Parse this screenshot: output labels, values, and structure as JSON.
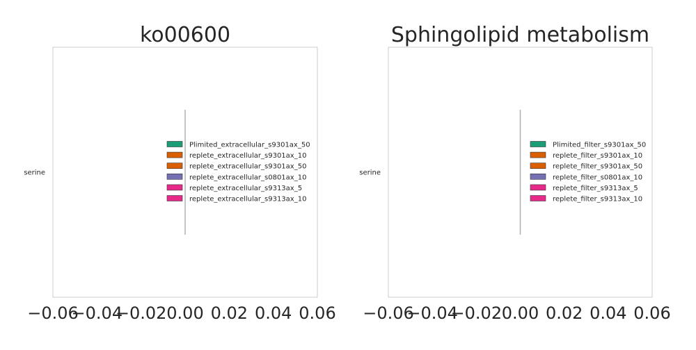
{
  "chart_data": [
    {
      "type": "bar",
      "orientation": "horizontal",
      "title": "ko00600",
      "xlabel": "",
      "ylabel": "",
      "categories": [
        "serine"
      ],
      "xlim": [
        -0.06,
        0.06
      ],
      "xticks": [
        "−0.06",
        "−0.04",
        "−0.02",
        "0.00",
        "0.02",
        "0.04",
        "0.06"
      ],
      "grid": false,
      "legend_position": "center",
      "series": [
        {
          "name": "Plimited_extracellular_s9301ax_50",
          "color": "#1b9e77",
          "values": [
            0
          ]
        },
        {
          "name": "replete_extracellular_s9301ax_10",
          "color": "#d95f02",
          "values": [
            0
          ]
        },
        {
          "name": "replete_extracellular_s9301ax_50",
          "color": "#d95f02",
          "values": [
            0
          ]
        },
        {
          "name": "replete_extracellular_s0801ax_10",
          "color": "#7570b3",
          "values": [
            0
          ]
        },
        {
          "name": "replete_extracellular_s9313ax_5",
          "color": "#e7298a",
          "values": [
            0
          ]
        },
        {
          "name": "replete_extracellular_s9313ax_10",
          "color": "#e7298a",
          "values": [
            0
          ]
        }
      ]
    },
    {
      "type": "bar",
      "orientation": "horizontal",
      "title": "Sphingolipid metabolism",
      "xlabel": "",
      "ylabel": "",
      "categories": [
        "serine"
      ],
      "xlim": [
        -0.06,
        0.06
      ],
      "xticks": [
        "−0.06",
        "−0.04",
        "−0.02",
        "0.00",
        "0.02",
        "0.04",
        "0.06"
      ],
      "grid": false,
      "legend_position": "center",
      "series": [
        {
          "name": "Plimited_filter_s9301ax_50",
          "color": "#1b9e77",
          "values": [
            0
          ]
        },
        {
          "name": "replete_filter_s9301ax_10",
          "color": "#d95f02",
          "values": [
            0
          ]
        },
        {
          "name": "replete_filter_s9301ax_50",
          "color": "#d95f02",
          "values": [
            0
          ]
        },
        {
          "name": "replete_filter_s0801ax_10",
          "color": "#7570b3",
          "values": [
            0
          ]
        },
        {
          "name": "replete_filter_s9313ax_5",
          "color": "#e7298a",
          "values": [
            0
          ]
        },
        {
          "name": "replete_filter_s9313ax_10",
          "color": "#e7298a",
          "values": [
            0
          ]
        }
      ]
    }
  ]
}
